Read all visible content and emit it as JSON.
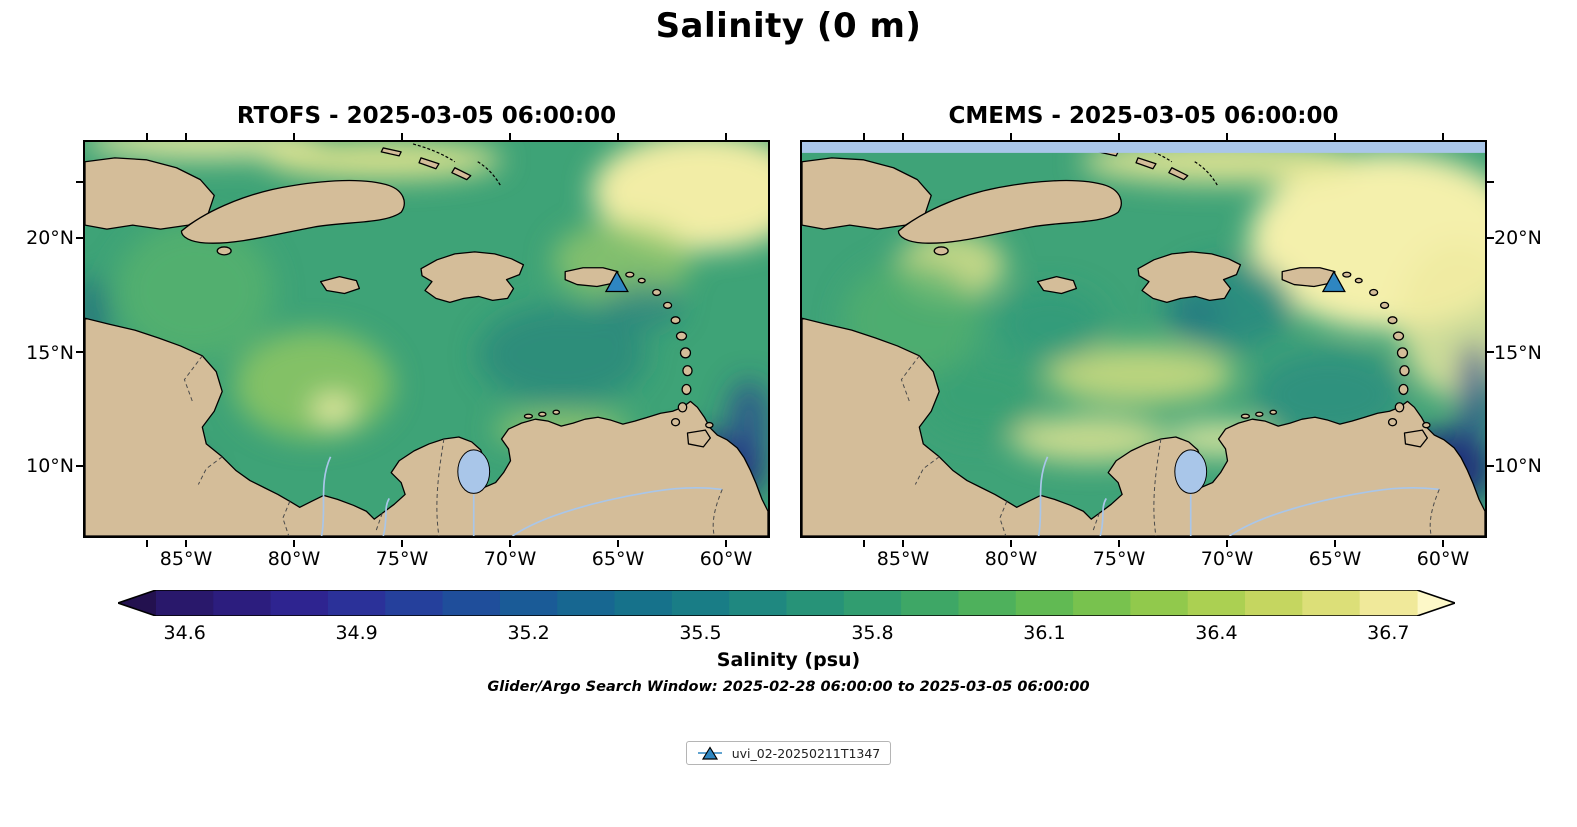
{
  "figure": {
    "title": "Salinity (0 m)",
    "search_window_note": "Glider/Argo Search Window: 2025-02-28 06:00:00 to 2025-03-05 06:00:00",
    "legend": {
      "label": "uvi_02-20250211T1347"
    },
    "colorbar": {
      "label": "Salinity (psu)",
      "ticks": [
        "34.6",
        "34.9",
        "35.2",
        "35.5",
        "35.8",
        "36.1",
        "36.4",
        "36.7"
      ]
    }
  },
  "panels": [
    {
      "id": "rtofs",
      "title": "RTOFS - 2025-03-05 06:00:00",
      "lat_ticks": [
        "20°N",
        "15°N",
        "10°N"
      ],
      "lon_ticks": [
        "85°W",
        "80°W",
        "75°W",
        "70°W",
        "65°W",
        "60°W"
      ]
    },
    {
      "id": "cmems",
      "title": "CMEMS - 2025-03-05 06:00:00",
      "lat_ticks": [
        "20°N",
        "15°N",
        "10°N"
      ],
      "lon_ticks": [
        "85°W",
        "80°W",
        "75°W",
        "70°W",
        "65°W",
        "60°W"
      ]
    }
  ],
  "chart_data": {
    "type": "heatmap",
    "title": "Salinity (0 m)",
    "variable": "Salinity",
    "units": "psu",
    "depth": "0 m",
    "region": "Caribbean Sea",
    "panels": [
      {
        "title": "RTOFS - 2025-03-05 06:00:00",
        "model": "RTOFS",
        "valid_time": "2025-03-05 06:00:00"
      },
      {
        "title": "CMEMS - 2025-03-05 06:00:00",
        "model": "CMEMS",
        "valid_time": "2025-03-05 06:00:00"
      }
    ],
    "lon_ticks_deg_w": [
      85,
      80,
      75,
      70,
      65,
      60
    ],
    "lat_ticks_deg_n": [
      20,
      15,
      10
    ],
    "approx_extent": {
      "lon_w": [
        90,
        58
      ],
      "lat_n": [
        7,
        24
      ]
    },
    "colorbar": {
      "label": "Salinity (psu)",
      "ticks": [
        34.6,
        34.9,
        35.2,
        35.5,
        35.8,
        36.1,
        36.4,
        36.7
      ],
      "vmin": 34.55,
      "vmax": 36.75,
      "extend": "both",
      "colormap": "haline (dark navy -> blue -> teal -> green -> pale yellow)",
      "under_color": "#23114f",
      "over_color": "#fdf8c8",
      "colors": [
        "#29186b",
        "#2c1d7e",
        "#2e2490",
        "#2b3199",
        "#25409c",
        "#1f4e9b",
        "#1a5b97",
        "#176791",
        "#16728b",
        "#197d86",
        "#1f8880",
        "#279378",
        "#319d70",
        "#3ea766",
        "#4eb15c",
        "#61ba53",
        "#78c24e",
        "#91c94c",
        "#abd052",
        "#c5d660",
        "#dcdf78",
        "#f0e99a"
      ]
    },
    "markers": [
      {
        "label": "uvi_02-20250211T1347",
        "symbol": "triangle",
        "color": "#2e86c1",
        "approx_lon_w": 65.2,
        "approx_lat_n": 18.1,
        "shown_on": [
          "RTOFS",
          "CMEMS"
        ]
      }
    ],
    "search_window": {
      "start": "2025-02-28 06:00:00",
      "end": "2025-03-05 06:00:00"
    },
    "notes": "Filled salinity fields over the Caribbean; fresher (dark navy) water in the SW corner and SE near the Orinoco plume, saltier (pale yellow) Atlantic water to the NE; CMEMS panel shows a light-blue no-data strip along its top edge."
  }
}
